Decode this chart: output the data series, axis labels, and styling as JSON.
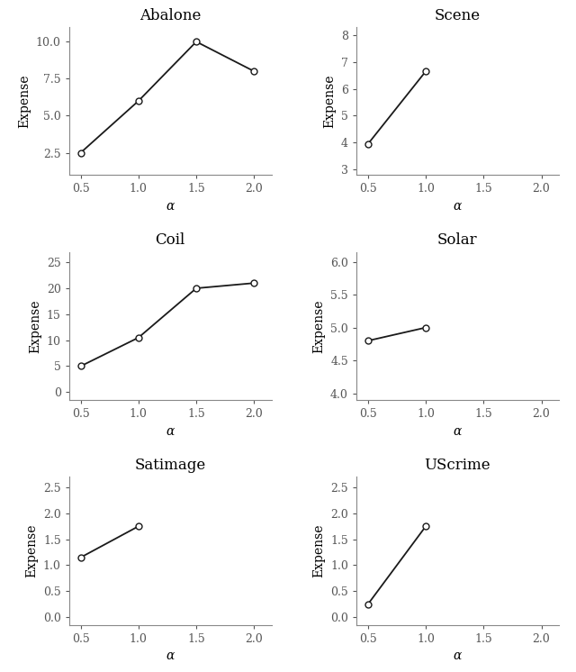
{
  "plots": [
    {
      "title": "Abalone",
      "x": [
        0.5,
        1.0,
        1.5,
        2.0
      ],
      "y": [
        2.5,
        6.0,
        10.0,
        8.0
      ],
      "xlim": [
        0.4,
        2.15
      ],
      "ylim": [
        1.0,
        11.0
      ],
      "xticks": [
        0.5,
        1.0,
        1.5,
        2.0
      ],
      "yticks": [
        2.5,
        5.0,
        7.5,
        10.0
      ]
    },
    {
      "title": "Scene",
      "x": [
        0.5,
        1.0
      ],
      "y": [
        3.95,
        6.65
      ],
      "xlim": [
        0.4,
        2.15
      ],
      "ylim": [
        2.8,
        8.3
      ],
      "xticks": [
        0.5,
        1.0,
        1.5,
        2.0
      ],
      "yticks": [
        3.0,
        4.0,
        5.0,
        6.0,
        7.0,
        8.0
      ]
    },
    {
      "title": "Coil",
      "x": [
        0.5,
        1.0,
        1.5,
        2.0
      ],
      "y": [
        5.0,
        10.5,
        20.0,
        21.0
      ],
      "xlim": [
        0.4,
        2.15
      ],
      "ylim": [
        -1.5,
        27.0
      ],
      "xticks": [
        0.5,
        1.0,
        1.5,
        2.0
      ],
      "yticks": [
        0,
        5,
        10,
        15,
        20,
        25
      ]
    },
    {
      "title": "Solar",
      "x": [
        0.5,
        1.0
      ],
      "y": [
        4.8,
        5.0
      ],
      "xlim": [
        0.4,
        2.15
      ],
      "ylim": [
        3.9,
        6.15
      ],
      "xticks": [
        0.5,
        1.0,
        1.5,
        2.0
      ],
      "yticks": [
        4.0,
        4.5,
        5.0,
        5.5,
        6.0
      ]
    },
    {
      "title": "Satimage",
      "x": [
        0.5,
        1.0
      ],
      "y": [
        1.15,
        1.75
      ],
      "xlim": [
        0.4,
        2.15
      ],
      "ylim": [
        -0.15,
        2.7
      ],
      "xticks": [
        0.5,
        1.0,
        1.5,
        2.0
      ],
      "yticks": [
        0.0,
        0.5,
        1.0,
        1.5,
        2.0,
        2.5
      ]
    },
    {
      "title": "UScrime",
      "x": [
        0.5,
        1.0
      ],
      "y": [
        0.25,
        1.75
      ],
      "xlim": [
        0.4,
        2.15
      ],
      "ylim": [
        -0.15,
        2.7
      ],
      "xticks": [
        0.5,
        1.0,
        1.5,
        2.0
      ],
      "yticks": [
        0.0,
        0.5,
        1.0,
        1.5,
        2.0,
        2.5
      ]
    }
  ],
  "xlabel": "α",
  "ylabel": "Expense",
  "line_color": "#1a1a1a",
  "marker": "o",
  "marker_size": 5,
  "marker_facecolor": "white",
  "marker_edgecolor": "#1a1a1a",
  "linewidth": 1.3,
  "title_fontsize": 12,
  "label_fontsize": 10,
  "tick_fontsize": 9,
  "bg_color": "#ffffff",
  "spine_color": "#888888"
}
